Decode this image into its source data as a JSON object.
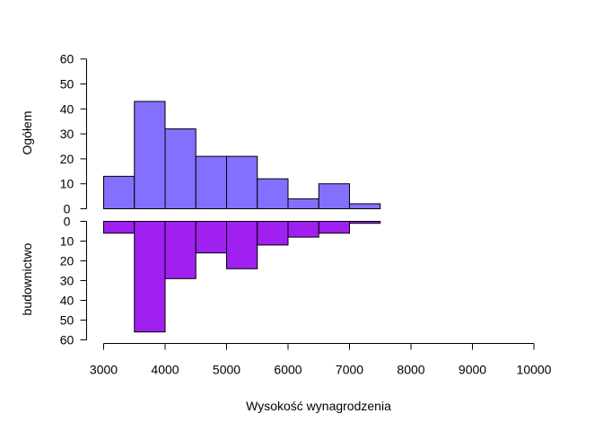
{
  "chart_data": {
    "type": "bar",
    "xlabel": "Wysokość wynagrodzenia",
    "x_ticks": [
      "3000",
      "4000",
      "5000",
      "6000",
      "7000",
      "8000",
      "9000",
      "10000"
    ],
    "xlim": [
      3000,
      10000
    ],
    "bin_width": 500,
    "panels": [
      {
        "ylabel": "Ogółem",
        "ylim": [
          0,
          60
        ],
        "y_ticks": [
          "0",
          "10",
          "20",
          "30",
          "40",
          "50",
          "60"
        ],
        "color": "#8470FF",
        "bins_start": [
          3000,
          3500,
          4000,
          4500,
          5000,
          5500,
          6000,
          6500,
          7000
        ],
        "values": [
          13,
          43,
          32,
          21,
          21,
          12,
          4,
          10,
          2
        ]
      },
      {
        "ylabel": "budownictwo",
        "ylim": [
          0,
          60
        ],
        "inverted": true,
        "y_ticks": [
          "0",
          "10",
          "20",
          "30",
          "40",
          "50",
          "60"
        ],
        "color": "#A020F0",
        "bins_start": [
          3000,
          3500,
          4000,
          4500,
          5000,
          5500,
          6000,
          6500,
          7000
        ],
        "values": [
          6,
          56,
          29,
          16,
          24,
          12,
          8,
          6,
          1
        ]
      }
    ]
  }
}
